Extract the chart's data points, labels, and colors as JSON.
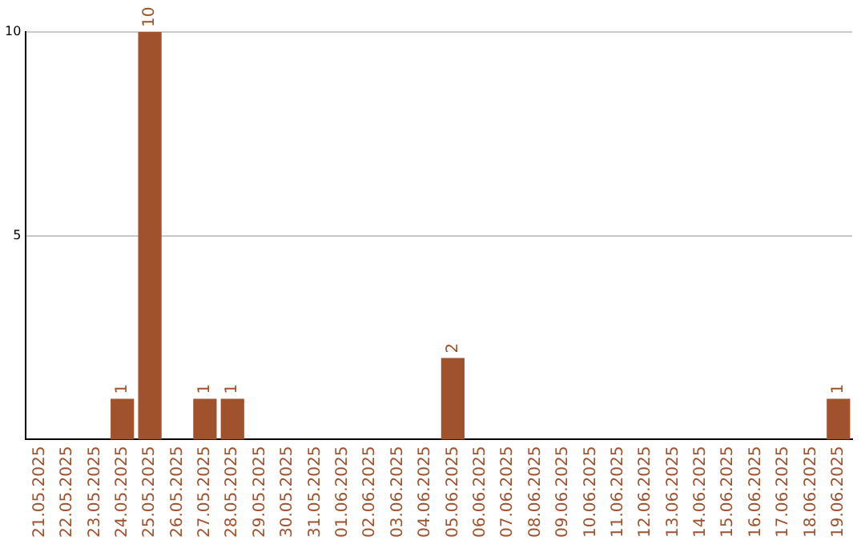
{
  "chart_data": {
    "type": "bar",
    "categories": [
      "21.05.2025",
      "22.05.2025",
      "23.05.2025",
      "24.05.2025",
      "25.05.2025",
      "26.05.2025",
      "27.05.2025",
      "28.05.2025",
      "29.05.2025",
      "30.05.2025",
      "31.05.2025",
      "01.06.2025",
      "02.06.2025",
      "03.06.2025",
      "04.06.2025",
      "05.06.2025",
      "06.06.2025",
      "07.06.2025",
      "08.06.2025",
      "09.06.2025",
      "10.06.2025",
      "11.06.2025",
      "12.06.2025",
      "13.06.2025",
      "14.06.2025",
      "15.06.2025",
      "16.06.2025",
      "17.06.2025",
      "18.06.2025",
      "19.06.2025"
    ],
    "values": [
      0,
      0,
      0,
      1,
      10,
      0,
      1,
      1,
      0,
      0,
      0,
      0,
      0,
      0,
      0,
      2,
      0,
      0,
      0,
      0,
      0,
      0,
      0,
      0,
      0,
      0,
      0,
      0,
      0,
      1
    ],
    "value_labels": [
      null,
      null,
      null,
      "1",
      "10",
      null,
      "1",
      "1",
      null,
      null,
      null,
      null,
      null,
      null,
      null,
      "2",
      null,
      null,
      null,
      null,
      null,
      null,
      null,
      null,
      null,
      null,
      null,
      null,
      null,
      "1"
    ],
    "color": "#a0522d",
    "ylim": [
      0,
      10
    ],
    "yticks": [
      5,
      10
    ],
    "grid": "y"
  }
}
